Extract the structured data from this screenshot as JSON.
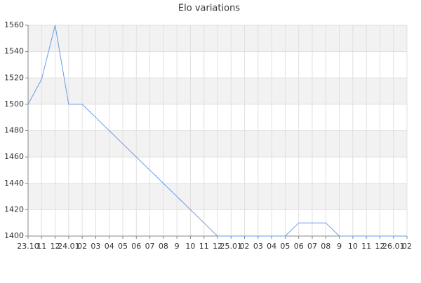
{
  "chart_data": {
    "type": "line",
    "title": "Elo variations",
    "categories": [
      "23.10",
      "11",
      "12",
      "24.01",
      "02",
      "03",
      "04",
      "05",
      "06",
      "07",
      "08",
      "9",
      "10",
      "11",
      "12",
      "25.01",
      "02",
      "03",
      "04",
      "05",
      "06",
      "07",
      "08",
      "9",
      "10",
      "11",
      "12",
      "26.01",
      "02"
    ],
    "values": [
      1500,
      1519,
      1560,
      1500,
      1500,
      1490,
      1480,
      1470,
      1460,
      1450,
      1440,
      1430,
      1420,
      1410,
      1400,
      1400,
      1400,
      1400,
      1400,
      1400,
      1410,
      1410,
      1410,
      1400,
      1400,
      1400,
      1400,
      1400,
      1400
    ],
    "color": "#6a9be8",
    "ylim": [
      1400,
      1560
    ],
    "yticks": [
      1400,
      1420,
      1440,
      1460,
      1480,
      1500,
      1520,
      1540,
      1560
    ],
    "grid": true
  }
}
